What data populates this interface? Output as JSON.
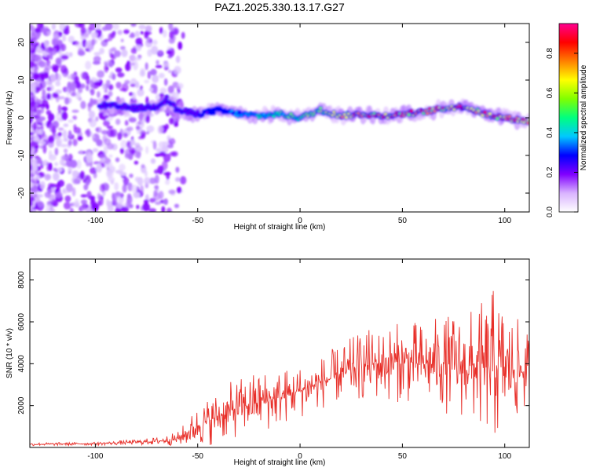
{
  "title": "PAZ1.2025.330.13.17.G27",
  "chart_data": [
    {
      "type": "heatmap",
      "xlabel": "Height of straight line (km)",
      "ylabel": "Frequency (Hz)",
      "xlim": [
        -132,
        112
      ],
      "ylim": [
        -25,
        25
      ],
      "xticks": [
        -100,
        -50,
        0,
        50,
        100
      ],
      "yticks": [
        -20,
        -10,
        0,
        10,
        20
      ],
      "colorbar": {
        "label": "Normalized spectral amplitude",
        "range": [
          0,
          0.95
        ],
        "ticks": [
          0.0,
          0.2,
          0.4,
          0.6,
          0.8
        ],
        "colors": [
          "#ffffff",
          "#d9b3ff",
          "#8000ff",
          "#0000ff",
          "#00c8ff",
          "#00ff80",
          "#80ff00",
          "#ffff00",
          "#ff8000",
          "#ff0000",
          "#ff0090"
        ]
      },
      "ridge": {
        "x": [
          -100,
          -90,
          -80,
          -70,
          -65,
          -60,
          -50,
          -40,
          -30,
          -20,
          -10,
          0,
          10,
          20,
          30,
          40,
          50,
          60,
          70,
          80,
          90,
          100,
          112
        ],
        "frequency": [
          3.5,
          3,
          2.5,
          3,
          5,
          2,
          1,
          2,
          1,
          0.5,
          1,
          0,
          2,
          0.5,
          1,
          0.5,
          1,
          1.5,
          2.5,
          3,
          1,
          0,
          -1
        ]
      }
    },
    {
      "type": "line",
      "xlabel": "Height of straight line (km)",
      "ylabel": "SNR (10 * v/v)",
      "xlim": [
        -132,
        112
      ],
      "ylim": [
        0,
        9000
      ],
      "xticks": [
        -100,
        -50,
        0,
        50,
        100
      ],
      "yticks": [
        2000,
        4000,
        6000,
        8000
      ],
      "color": "#e8302a",
      "envelope": {
        "x": [
          -132,
          -100,
          -80,
          -70,
          -60,
          -55,
          -50,
          -40,
          -30,
          -20,
          -10,
          0,
          10,
          20,
          30,
          40,
          50,
          60,
          70,
          80,
          90,
          95,
          100,
          105,
          112
        ],
        "mean": [
          150,
          180,
          250,
          300,
          400,
          700,
          1000,
          1500,
          1900,
          2200,
          2400,
          2700,
          3100,
          3500,
          3900,
          4000,
          4100,
          4000,
          4000,
          3900,
          3800,
          3900,
          3800,
          3700,
          3600
        ],
        "amplitude": [
          60,
          60,
          100,
          150,
          250,
          500,
          800,
          1000,
          1100,
          1200,
          1100,
          1000,
          1000,
          1100,
          1300,
          1400,
          1500,
          1600,
          1800,
          2000,
          2500,
          3000,
          2500,
          2000,
          1400
        ]
      }
    }
  ]
}
